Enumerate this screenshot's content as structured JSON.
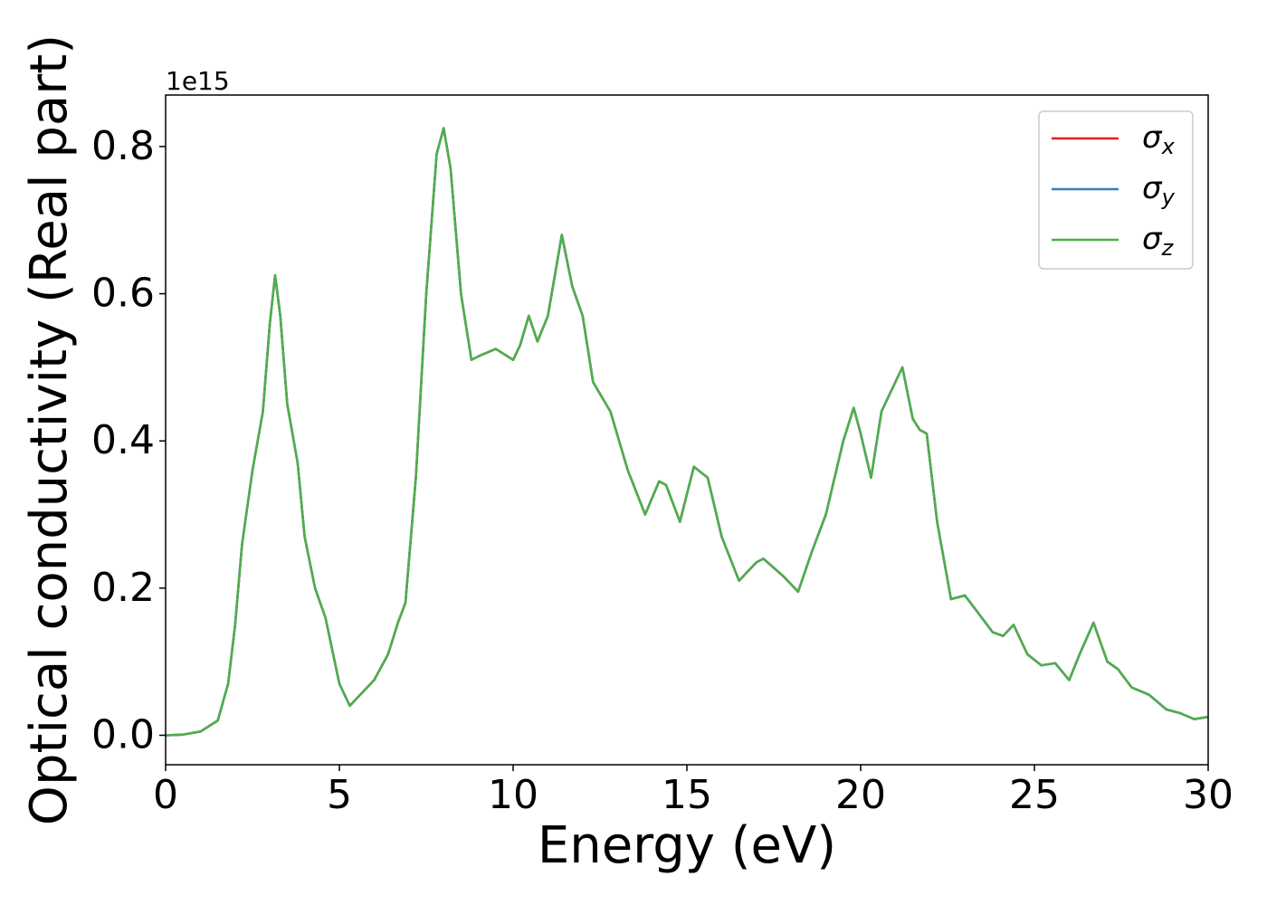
{
  "chart_data": {
    "type": "line",
    "xlabel": "Energy (eV)",
    "ylabel": "Optical conductivity (Real part)",
    "y_offset_label": "1e15",
    "x": [
      0,
      0.5,
      1,
      1.5,
      1.8,
      2,
      2.2,
      2.5,
      2.8,
      3.0,
      3.15,
      3.3,
      3.5,
      3.8,
      4.0,
      4.3,
      4.6,
      5.0,
      5.3,
      5.6,
      6.0,
      6.4,
      6.7,
      6.9,
      7.2,
      7.5,
      7.8,
      8.0,
      8.2,
      8.5,
      8.8,
      9.0,
      9.5,
      10.0,
      10.2,
      10.45,
      10.7,
      11.0,
      11.4,
      11.7,
      12.0,
      12.3,
      12.8,
      13.3,
      13.8,
      14.2,
      14.4,
      14.8,
      15.2,
      15.6,
      16.0,
      16.5,
      17.0,
      17.2,
      17.8,
      18.2,
      18.6,
      19.0,
      19.5,
      19.8,
      20.0,
      20.3,
      20.6,
      21.0,
      21.2,
      21.5,
      21.7,
      21.9,
      22.2,
      22.6,
      23.0,
      23.4,
      23.8,
      24.1,
      24.4,
      24.8,
      25.2,
      25.6,
      26.0,
      26.3,
      26.7,
      27.1,
      27.4,
      27.8,
      28.3,
      28.8,
      29.2,
      29.6,
      30.0
    ],
    "series": [
      {
        "name": "σx",
        "color": "#e41a1c",
        "values": [
          0,
          0.001,
          0.005,
          0.02,
          0.07,
          0.15,
          0.26,
          0.36,
          0.44,
          0.56,
          0.625,
          0.57,
          0.45,
          0.37,
          0.27,
          0.2,
          0.16,
          0.07,
          0.04,
          0.055,
          0.075,
          0.11,
          0.155,
          0.18,
          0.35,
          0.6,
          0.79,
          0.825,
          0.77,
          0.6,
          0.51,
          0.515,
          0.525,
          0.51,
          0.53,
          0.57,
          0.535,
          0.57,
          0.68,
          0.61,
          0.57,
          0.48,
          0.44,
          0.36,
          0.3,
          0.345,
          0.34,
          0.29,
          0.365,
          0.35,
          0.27,
          0.21,
          0.235,
          0.24,
          0.215,
          0.195,
          0.25,
          0.3,
          0.4,
          0.445,
          0.41,
          0.35,
          0.44,
          0.48,
          0.5,
          0.43,
          0.415,
          0.41,
          0.29,
          0.185,
          0.19,
          0.165,
          0.14,
          0.135,
          0.15,
          0.11,
          0.095,
          0.098,
          0.075,
          0.11,
          0.153,
          0.1,
          0.09,
          0.065,
          0.055,
          0.035,
          0.03,
          0.022,
          0.025
        ]
      },
      {
        "name": "σy",
        "color": "#377eb8",
        "values": [
          0,
          0.001,
          0.005,
          0.02,
          0.07,
          0.15,
          0.26,
          0.36,
          0.44,
          0.56,
          0.625,
          0.57,
          0.45,
          0.37,
          0.27,
          0.2,
          0.16,
          0.07,
          0.04,
          0.055,
          0.075,
          0.11,
          0.155,
          0.18,
          0.35,
          0.6,
          0.79,
          0.825,
          0.77,
          0.6,
          0.51,
          0.515,
          0.525,
          0.51,
          0.53,
          0.57,
          0.535,
          0.57,
          0.68,
          0.61,
          0.57,
          0.48,
          0.44,
          0.36,
          0.3,
          0.345,
          0.34,
          0.29,
          0.365,
          0.35,
          0.27,
          0.21,
          0.235,
          0.24,
          0.215,
          0.195,
          0.25,
          0.3,
          0.4,
          0.445,
          0.41,
          0.35,
          0.44,
          0.48,
          0.5,
          0.43,
          0.415,
          0.41,
          0.29,
          0.185,
          0.19,
          0.165,
          0.14,
          0.135,
          0.15,
          0.11,
          0.095,
          0.098,
          0.075,
          0.11,
          0.153,
          0.1,
          0.09,
          0.065,
          0.055,
          0.035,
          0.03,
          0.022,
          0.025
        ]
      },
      {
        "name": "σz",
        "color": "#4daf4a",
        "values": [
          0,
          0.001,
          0.005,
          0.02,
          0.07,
          0.15,
          0.26,
          0.36,
          0.44,
          0.56,
          0.625,
          0.57,
          0.45,
          0.37,
          0.27,
          0.2,
          0.16,
          0.07,
          0.04,
          0.055,
          0.075,
          0.11,
          0.155,
          0.18,
          0.35,
          0.6,
          0.79,
          0.825,
          0.77,
          0.6,
          0.51,
          0.515,
          0.525,
          0.51,
          0.53,
          0.57,
          0.535,
          0.57,
          0.68,
          0.61,
          0.57,
          0.48,
          0.44,
          0.36,
          0.3,
          0.345,
          0.34,
          0.29,
          0.365,
          0.35,
          0.27,
          0.21,
          0.235,
          0.24,
          0.215,
          0.195,
          0.25,
          0.3,
          0.4,
          0.445,
          0.41,
          0.35,
          0.44,
          0.48,
          0.5,
          0.43,
          0.415,
          0.41,
          0.29,
          0.185,
          0.19,
          0.165,
          0.14,
          0.135,
          0.15,
          0.11,
          0.095,
          0.098,
          0.075,
          0.11,
          0.153,
          0.1,
          0.09,
          0.065,
          0.055,
          0.035,
          0.03,
          0.022,
          0.025
        ]
      }
    ],
    "xlim": [
      0,
      30
    ],
    "xticks": [
      0,
      5,
      10,
      15,
      20,
      25,
      30
    ],
    "ylim": [
      -0.04,
      0.87
    ],
    "yticks": [
      {
        "value": 0,
        "label": "0.0"
      },
      0.2,
      0.4,
      0.6,
      0.8
    ],
    "legend": "upper right",
    "grid": false
  }
}
